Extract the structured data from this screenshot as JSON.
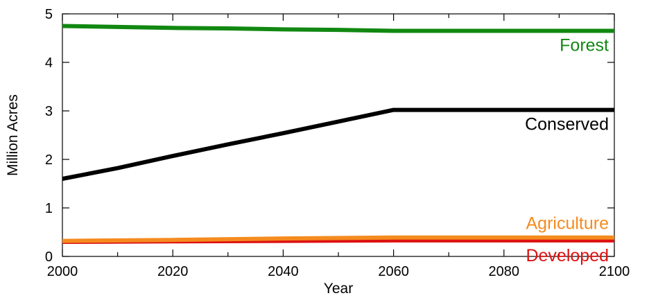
{
  "chart_data": {
    "type": "line",
    "title": "",
    "xlabel": "Year",
    "ylabel": "Million  Acres",
    "xlim": [
      2000,
      2100
    ],
    "ylim": [
      0,
      5
    ],
    "xticks": [
      2000,
      2020,
      2040,
      2060,
      2080,
      2100
    ],
    "yticks": [
      0,
      1,
      2,
      3,
      4,
      5
    ],
    "x_minor_step": 10,
    "grid": false,
    "legend": "inline-right",
    "series": [
      {
        "name": "Forest",
        "color": "#118811",
        "x": [
          2000,
          2010,
          2020,
          2030,
          2040,
          2050,
          2060,
          2070,
          2080,
          2090,
          2100
        ],
        "values": [
          4.75,
          4.73,
          4.71,
          4.7,
          4.68,
          4.67,
          4.65,
          4.65,
          4.65,
          4.65,
          4.65
        ]
      },
      {
        "name": "Conserved",
        "color": "#000000",
        "x": [
          2000,
          2010,
          2020,
          2030,
          2040,
          2050,
          2060,
          2070,
          2080,
          2090,
          2100
        ],
        "values": [
          1.6,
          1.82,
          2.07,
          2.31,
          2.54,
          2.78,
          3.02,
          3.02,
          3.02,
          3.02,
          3.02
        ]
      },
      {
        "name": "Developed",
        "color": "#dd1111",
        "x": [
          2000,
          2020,
          2040,
          2060,
          2080,
          2100
        ],
        "values": [
          0.3,
          0.31,
          0.32,
          0.33,
          0.33,
          0.33
        ]
      },
      {
        "name": "Agriculture",
        "color": "#f58b1f",
        "x": [
          2000,
          2020,
          2040,
          2060,
          2080,
          2100
        ],
        "values": [
          0.32,
          0.34,
          0.37,
          0.39,
          0.39,
          0.39
        ]
      }
    ]
  }
}
